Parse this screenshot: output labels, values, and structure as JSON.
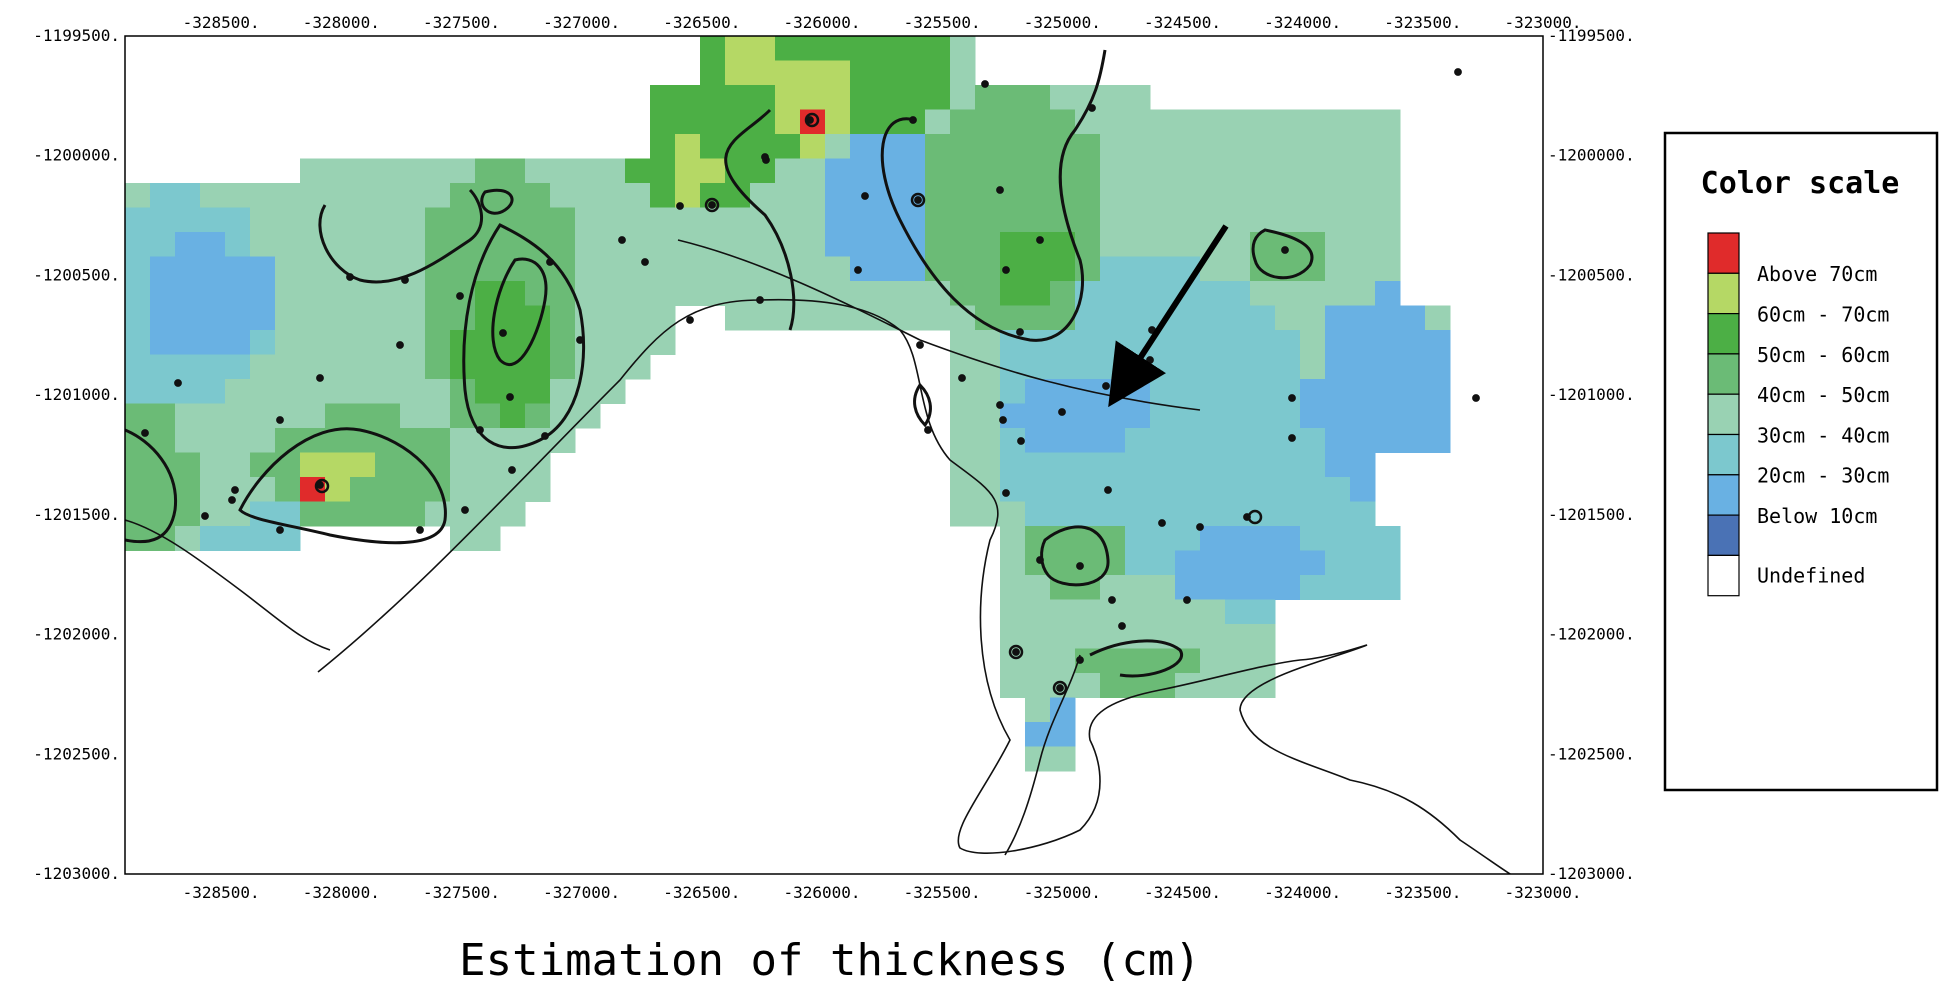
{
  "chart_data": {
    "type": "heatmap",
    "title": "",
    "xlabel": "Estimation of thickness (cm)",
    "ylabel": "",
    "xlim": [
      -328900,
      -323000
    ],
    "ylim": [
      -1203000,
      -1199500
    ],
    "x_tick_labels": [
      "-328500.",
      "-328000.",
      "-327500.",
      "-327000.",
      "-326500.",
      "-326000.",
      "-325500.",
      "-325000.",
      "-324500.",
      "-324000.",
      "-323500.",
      "-323000."
    ],
    "y_tick_labels": [
      "-1199500.",
      "-1200000.",
      "-1200500.",
      "-1201000.",
      "-1201500.",
      "-1202000.",
      "-1202500.",
      "-1203000."
    ],
    "grid": false,
    "legend": {
      "title": "Color scale",
      "placement": "right",
      "items": [
        {
          "label": "Above 70cm",
          "color": "#e02b2b"
        },
        {
          "label": "60cm - 70cm",
          "color": "#b5d865"
        },
        {
          "label": "50cm - 60cm",
          "color": "#4caf45"
        },
        {
          "label": "40cm - 50cm",
          "color": "#6bbb76"
        },
        {
          "label": "30cm - 40cm",
          "color": "#99d2b3"
        },
        {
          "label": "20cm - 30cm",
          "color": "#7cc8ce"
        },
        {
          "label": "Below 10cm",
          "color": "#69b1e3"
        },
        {
          "label": "",
          "color": "#4a72b5"
        },
        {
          "label": "Undefined",
          "color": "#ffffff"
        }
      ]
    },
    "annotations": [
      "arrow pointing to area near (-324850, -1201000)"
    ],
    "peaks_above_70cm": [
      [
        -328050,
        -1201350
      ],
      [
        -326050,
        -1199850
      ]
    ]
  }
}
